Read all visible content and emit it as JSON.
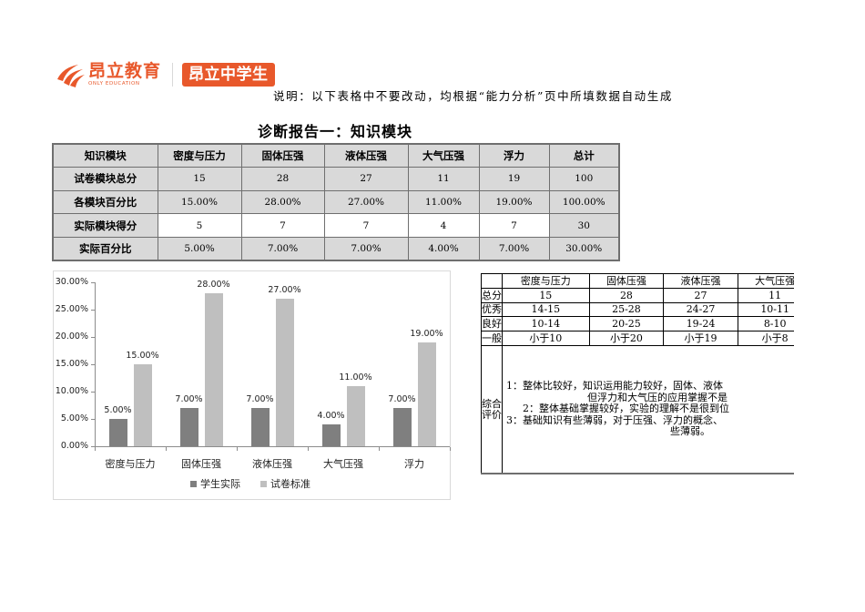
{
  "logo": {
    "brand_cn": "昂立教育",
    "brand_en": "ONLY EDUCATION",
    "badge": "昂立中学生",
    "brand_color": "#e8582b"
  },
  "note": "说明：以下表格中不要改动，均根据“能力分析”页中所填数据自动生成",
  "title": "诊断报告一：知识模块",
  "knowledge_table": {
    "header": [
      "知识模块",
      "密度与压力",
      "固体压强",
      "液体压强",
      "大气压强",
      "浮力",
      "总计"
    ],
    "rows": [
      {
        "label": "试卷模块总分",
        "values": [
          "15",
          "28",
          "27",
          "11",
          "19",
          "100"
        ]
      },
      {
        "label": "各模块百分比",
        "values": [
          "15.00%",
          "28.00%",
          "27.00%",
          "11.00%",
          "19.00%",
          "100.00%"
        ]
      },
      {
        "label": "实际模块得分",
        "values": [
          "5",
          "7",
          "7",
          "4",
          "7",
          "30"
        ]
      },
      {
        "label": "实际百分比",
        "values": [
          "5.00%",
          "7.00%",
          "7.00%",
          "4.00%",
          "7.00%",
          "30.00%"
        ]
      }
    ]
  },
  "chart_data": {
    "type": "bar",
    "title": "",
    "xlabel": "",
    "ylabel": "",
    "categories": [
      "密度与压力",
      "固体压强",
      "液体压强",
      "大气压强",
      "浮力"
    ],
    "series": [
      {
        "name": "学生实际",
        "color": "#7f7f7f",
        "values": [
          5,
          7,
          7,
          4,
          7
        ],
        "labels": [
          "5.00%",
          "7.00%",
          "7.00%",
          "4.00%",
          "7.00%"
        ]
      },
      {
        "name": "试卷标准",
        "color": "#bfbfbf",
        "values": [
          15,
          28,
          27,
          11,
          19
        ],
        "labels": [
          "15.00%",
          "28.00%",
          "27.00%",
          "11.00%",
          "19.00%"
        ]
      }
    ],
    "ylim": [
      0,
      30
    ],
    "yticks": [
      "0.00%",
      "5.00%",
      "10.00%",
      "15.00%",
      "20.00%",
      "25.00%",
      "30.00%"
    ],
    "grid": false,
    "legend_position": "bottom"
  },
  "rating_table": {
    "header": [
      "",
      "密度与压力",
      "固体压强",
      "液体压强",
      "大气压强"
    ],
    "rows": [
      {
        "label": "总分",
        "values": [
          "15",
          "28",
          "27",
          "11"
        ]
      },
      {
        "label": "优秀",
        "values": [
          "14-15",
          "25-28",
          "24-27",
          "10-11"
        ]
      },
      {
        "label": "良好",
        "values": [
          "10-14",
          "20-25",
          "19-24",
          "8-10"
        ]
      },
      {
        "label": "一般",
        "values": [
          "小于10",
          "小于20",
          "小于19",
          "小于8"
        ]
      }
    ],
    "evaluation": {
      "label_line1": "综合",
      "label_line2": "评价",
      "lines": [
        "1：整体比较好，知识运用能力较好，固体、液体",
        "但浮力和大气压的应用掌握不是",
        "2：整体基础掌握较好，实验的理解不是很到位",
        "3：基础知识有些薄弱，对于压强、浮力的概念、",
        "些薄弱。"
      ]
    }
  }
}
